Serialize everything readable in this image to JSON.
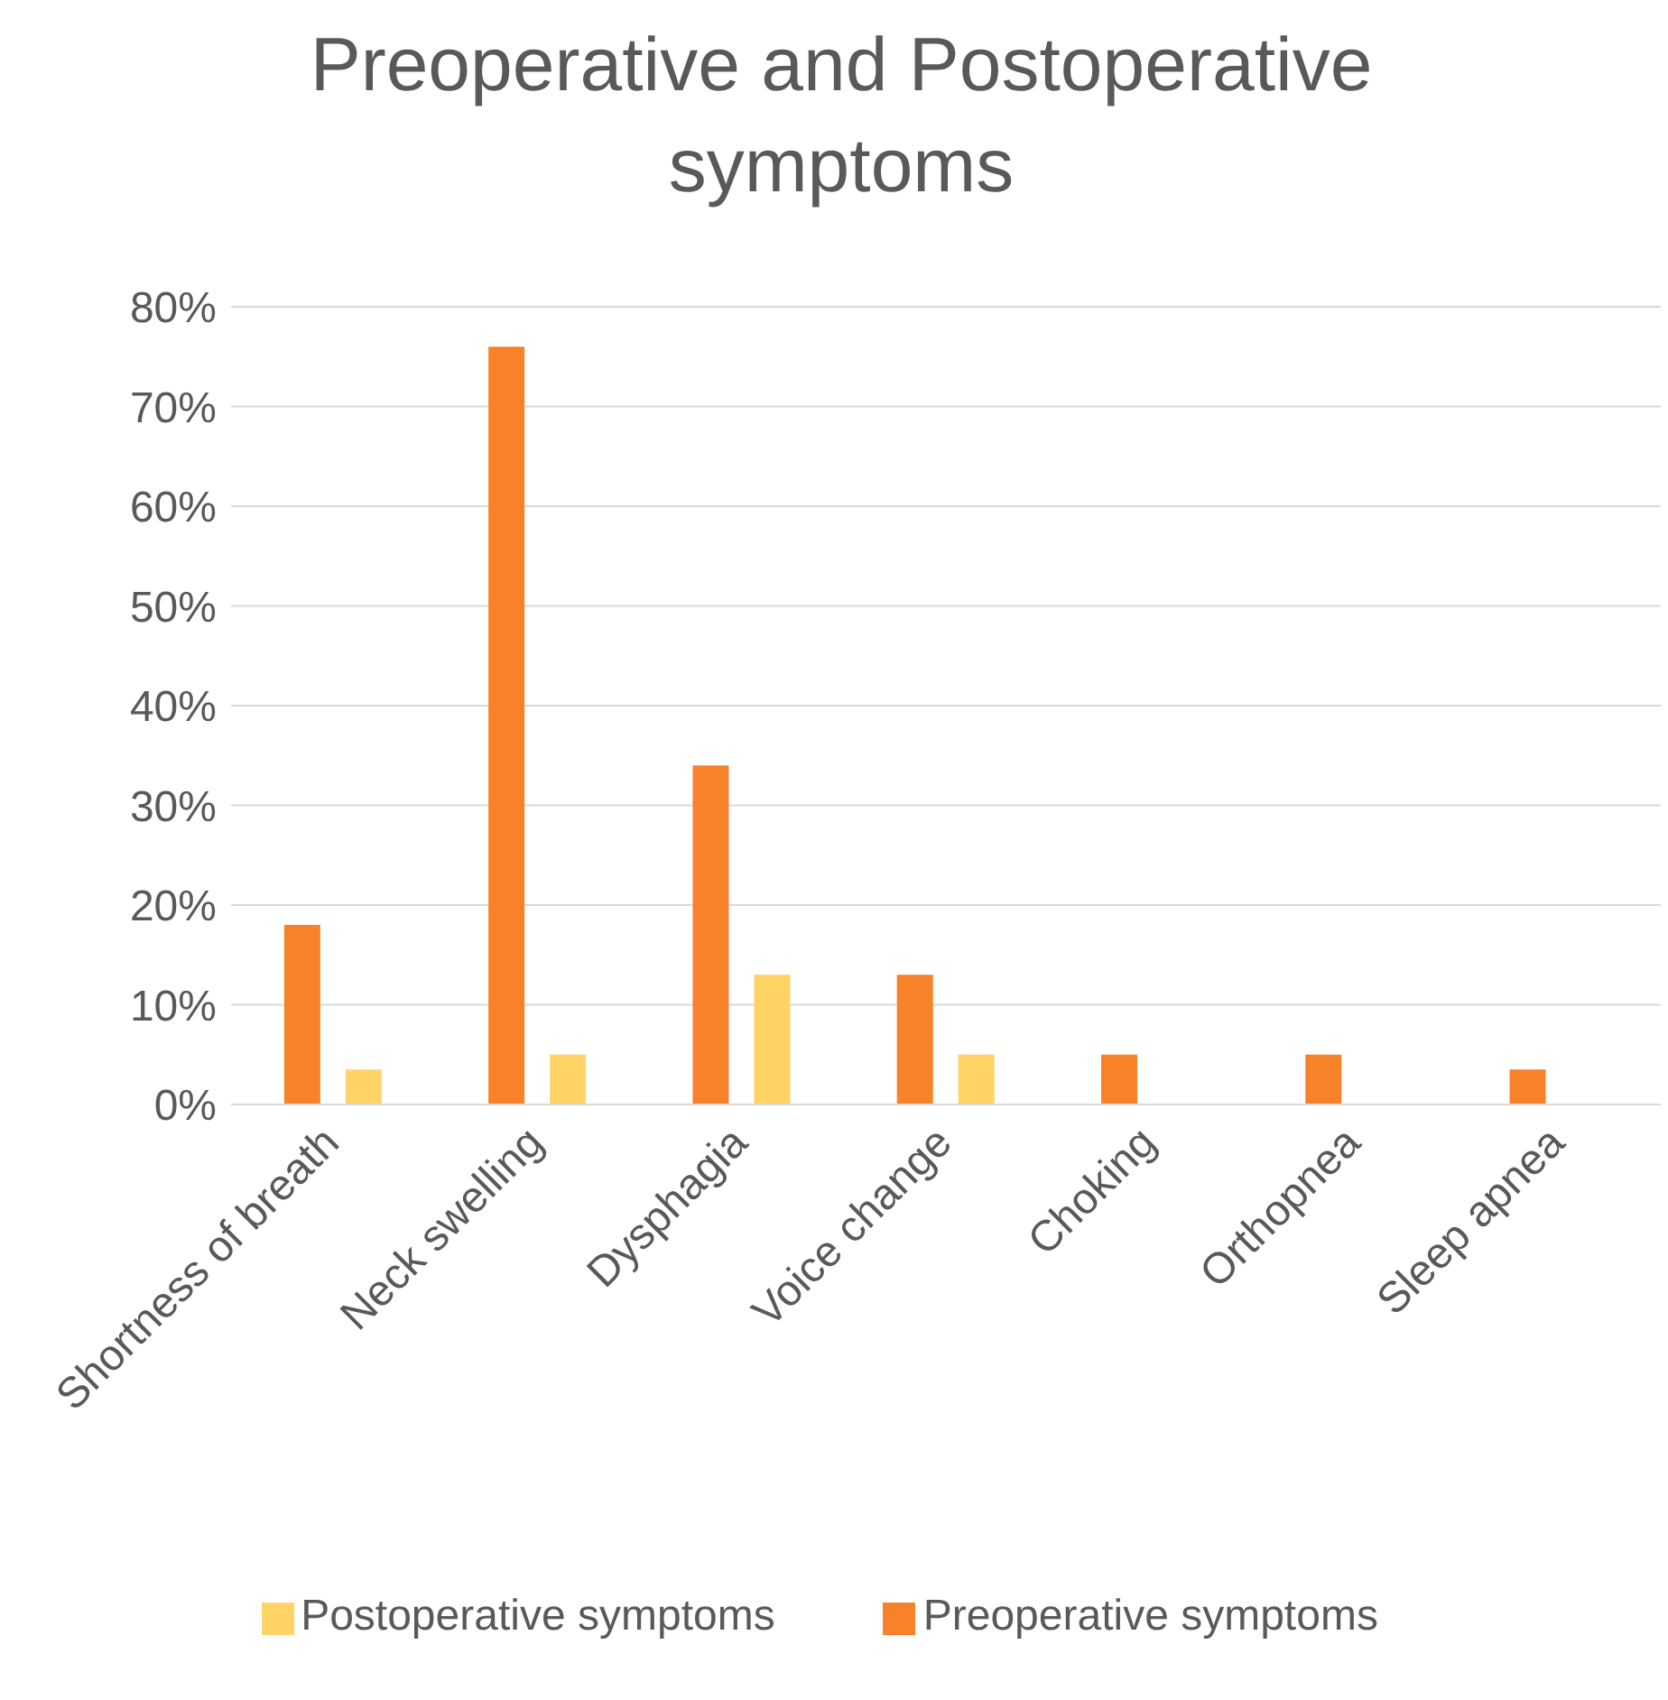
{
  "chart_data": {
    "type": "bar",
    "title": "Preoperative and Postoperative symptoms",
    "categories": [
      "Shortness of breath",
      "Neck swelling",
      "Dysphagia",
      "Voice change",
      "Choking",
      "Orthopnea",
      "Sleep apnea"
    ],
    "series": [
      {
        "name": "Preoperative symptoms",
        "color": "#f7822a",
        "values": [
          18,
          76,
          34,
          13,
          5,
          5,
          3.5
        ]
      },
      {
        "name": "Postoperative symptoms",
        "color": "#ffd366",
        "values": [
          3.5,
          5,
          13,
          5,
          null,
          null,
          null
        ]
      }
    ],
    "ylim": [
      0,
      80
    ],
    "yticks": [
      {
        "value": 0,
        "label": "0%"
      },
      {
        "value": 10,
        "label": "10%"
      },
      {
        "value": 20,
        "label": "20%"
      },
      {
        "value": 30,
        "label": "30%"
      },
      {
        "value": 40,
        "label": "40%"
      },
      {
        "value": 50,
        "label": "50%"
      },
      {
        "value": 60,
        "label": "60%"
      },
      {
        "value": 70,
        "label": "70%"
      },
      {
        "value": 80,
        "label": "80%"
      }
    ],
    "grid": "y",
    "legend": "bottom"
  }
}
